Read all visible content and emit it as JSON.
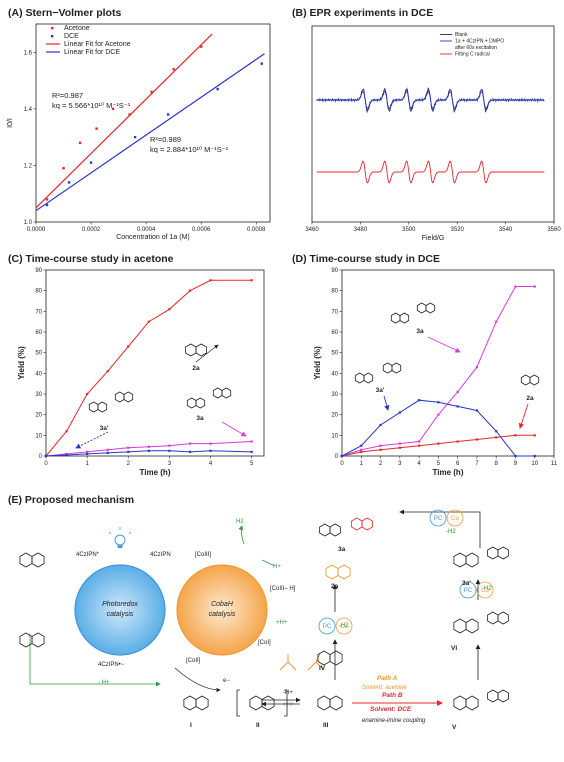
{
  "panels": {
    "A": {
      "title": "(A) Stern−Volmer plots"
    },
    "B": {
      "title": "(B) EPR experiments in DCE"
    },
    "C": {
      "title": "(C) Time-course study in acetone"
    },
    "D": {
      "title": "(D) Time-course study in DCE"
    },
    "E": {
      "title": "(E) Proposed mechanism"
    }
  },
  "chart_data": [
    {
      "id": "A",
      "type": "scatter",
      "xlabel": "Concentration of 1a (M)",
      "ylabel": "I0/I",
      "xlim": [
        0,
        0.00085
      ],
      "ylim": [
        1.0,
        1.7
      ],
      "xticks": [
        0,
        0.0002,
        0.0004,
        0.0006,
        0.0008
      ],
      "xtick_labels": [
        "0.0000",
        "0.0002",
        "0.0004",
        "0.0006",
        "0.0008"
      ],
      "yticks": [
        1.0,
        1.2,
        1.4,
        1.6
      ],
      "ytick_labels": [
        "1.0",
        "1.2",
        "1.4",
        "1.6"
      ],
      "legend": [
        "Acetone",
        "DCE",
        "Linear Fit for Acetone",
        "Linear Fit for DCE"
      ],
      "series": [
        {
          "name": "Acetone",
          "color": "#e8262b",
          "x": [
            4e-05,
            0.0001,
            0.00016,
            0.00022,
            0.00028,
            0.00034,
            0.00042,
            0.0005,
            0.0006
          ],
          "y": [
            1.08,
            1.19,
            1.28,
            1.33,
            1.4,
            1.38,
            1.46,
            1.54,
            1.62
          ]
        },
        {
          "name": "DCE",
          "color": "#2a36c8",
          "x": [
            4e-05,
            0.00012,
            0.0002,
            0.00036,
            0.00048,
            0.00066,
            0.00082
          ],
          "y": [
            1.06,
            1.14,
            1.21,
            1.3,
            1.38,
            1.47,
            1.56
          ]
        }
      ],
      "fits": [
        {
          "name": "Linear Fit for Acetone",
          "color": "#e8262b",
          "x": [
            0,
            0.00064
          ],
          "y": [
            1.05,
            1.665
          ]
        },
        {
          "name": "Linear Fit for DCE",
          "color": "#2a36c8",
          "x": [
            0,
            0.00083
          ],
          "y": [
            1.04,
            1.595
          ]
        }
      ],
      "annotations": {
        "acetone": [
          "R²=0.987",
          "kq = 5.566*10¹⁰ M⁻¹S⁻¹"
        ],
        "dce": [
          "R²=0.989",
          "kq = 2.884*10¹⁰ M⁻¹S⁻¹"
        ]
      }
    },
    {
      "id": "B",
      "type": "line",
      "xlabel": "Field/G",
      "xlim": [
        3460,
        3560
      ],
      "xticks": [
        3460,
        3480,
        3500,
        3520,
        3540,
        3560
      ],
      "legend": [
        "Blank",
        "1a + 4CzIPN + DMPO",
        "after 60s excitation",
        "Fitting C radical"
      ],
      "series": [
        {
          "name": "Blank",
          "color": "#1f2a5c"
        },
        {
          "name": "1a + 4CzIPN + DMPO",
          "color": "#2a36c8"
        },
        {
          "name": "Fitting C radical",
          "color": "#e8262b"
        }
      ],
      "peaks": [
        3482,
        3491,
        3500,
        3509,
        3518,
        3531
      ]
    },
    {
      "id": "C",
      "type": "line",
      "xlabel": "Time (h)",
      "ylabel": "Yield (%)",
      "xlim": [
        0,
        5.3
      ],
      "ylim": [
        0,
        90
      ],
      "xticks": [
        0,
        1,
        2,
        3,
        4,
        5
      ],
      "yticks": [
        0,
        10,
        20,
        30,
        40,
        50,
        60,
        70,
        80,
        90
      ],
      "series": [
        {
          "name": "2a",
          "color": "#e8262b",
          "x": [
            0,
            0.5,
            1,
            1.5,
            2,
            2.5,
            3,
            3.5,
            4,
            5
          ],
          "y": [
            0,
            12,
            30,
            41,
            53,
            65,
            71,
            80,
            85,
            85
          ]
        },
        {
          "name": "3a",
          "color": "#d63cd6",
          "x": [
            0,
            0.5,
            1,
            1.5,
            2,
            2.5,
            3,
            3.5,
            4,
            5
          ],
          "y": [
            0,
            1,
            2,
            3,
            4,
            4.5,
            5,
            6,
            6,
            7
          ]
        },
        {
          "name": "3a'",
          "color": "#2a36c8",
          "x": [
            0,
            0.5,
            1,
            1.5,
            2,
            2.5,
            3,
            3.5,
            4,
            5
          ],
          "y": [
            0,
            0.5,
            1,
            1.5,
            2,
            2.5,
            2.5,
            2,
            2.5,
            2
          ]
        }
      ],
      "labels": [
        "2a",
        "3a",
        "3a'"
      ]
    },
    {
      "id": "D",
      "type": "line",
      "xlabel": "Time (h)",
      "ylabel": "Yield (%)",
      "xlim": [
        0,
        11
      ],
      "ylim": [
        0,
        90
      ],
      "xticks": [
        0,
        1,
        2,
        3,
        4,
        5,
        6,
        7,
        8,
        9,
        10,
        11
      ],
      "yticks": [
        0,
        10,
        20,
        30,
        40,
        50,
        60,
        70,
        80,
        90
      ],
      "series": [
        {
          "name": "2a",
          "color": "#e8262b",
          "x": [
            0,
            1,
            2,
            3,
            4,
            5,
            6,
            7,
            8,
            9,
            10
          ],
          "y": [
            0,
            2,
            3,
            4,
            5,
            6,
            7,
            8,
            9,
            10,
            10
          ]
        },
        {
          "name": "3a",
          "color": "#d63cd6",
          "x": [
            0,
            1,
            2,
            3,
            4,
            5,
            6,
            7,
            8,
            9,
            10
          ],
          "y": [
            0,
            3,
            5,
            6,
            7,
            20,
            31,
            43,
            65,
            82,
            82
          ]
        },
        {
          "name": "3a'",
          "color": "#2a36c8",
          "x": [
            0,
            1,
            2,
            3,
            4,
            5,
            6,
            7,
            8,
            9,
            10
          ],
          "y": [
            0,
            5,
            15,
            21,
            27,
            26,
            24,
            22,
            12,
            0,
            0
          ]
        }
      ],
      "labels": [
        "2a",
        "3a",
        "3a'"
      ]
    }
  ],
  "mechanism": {
    "photoredox": "Photoredox catalysis",
    "cobalt": "CobaH catalysis",
    "species": {
      "pc_top_left": "4CzIPN*",
      "pc_top_right": "4CzIPN",
      "pc_bottom": "4CzIPN•−",
      "co3": "[CoIII]",
      "co3h": "[CoIII– H]",
      "co2": "[CoII]",
      "co1": "[CoI]",
      "h2": "H2",
      "hplus": "H+",
      "hplus2": "+H+",
      "minus_hplus": "- H+",
      "e_minus": "e−",
      "plus_h": "+H+",
      "minus_h": "-H+"
    },
    "compound_labels": [
      "I",
      "II",
      "III",
      "IV",
      "V",
      "VI",
      "2a",
      "3a",
      "3a'"
    ],
    "path_a": [
      "Path A",
      "Solvent: acetone"
    ],
    "path_b": [
      "Path B",
      "Solvent: DCE"
    ],
    "path_b_note": "enamine-imine coupling",
    "minus_h2": "-H2",
    "pc": "PC",
    "co": "Co"
  }
}
